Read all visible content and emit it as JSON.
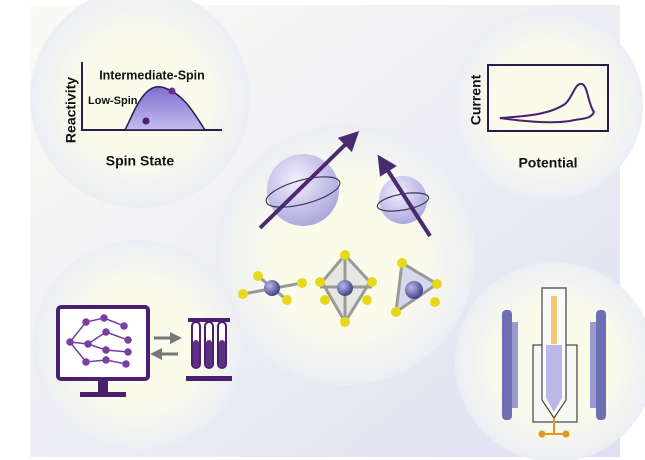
{
  "spin_panel": {
    "y_label": "Reactivity",
    "x_label": "Spin State",
    "high_label": "Intermediate-Spin",
    "low_label": "Low-Spin"
  },
  "cv_panel": {
    "y_label": "Current",
    "x_label": "Potential"
  }
}
